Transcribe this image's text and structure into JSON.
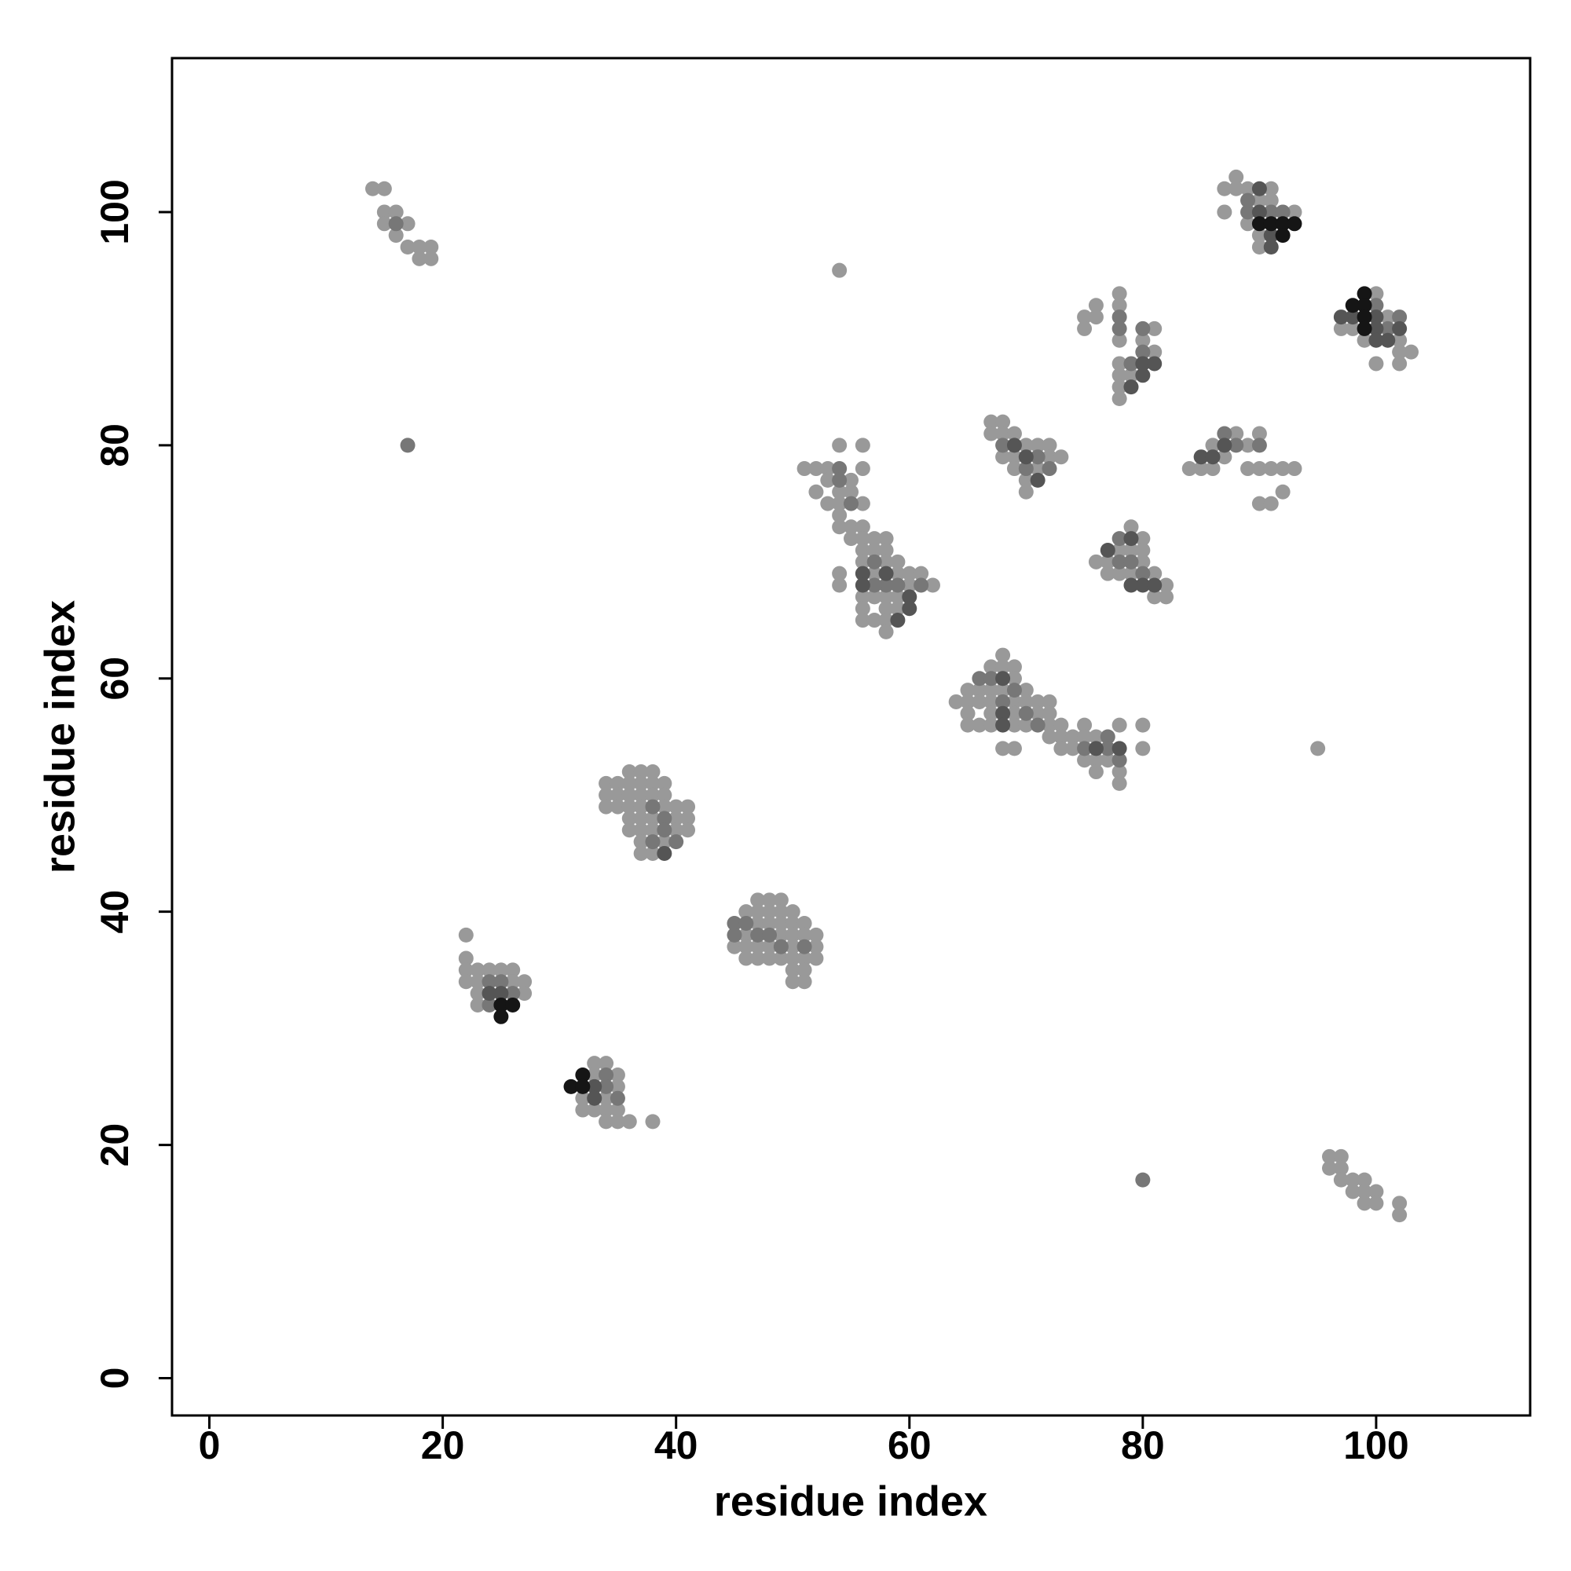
{
  "chart_data": {
    "type": "scatter",
    "xlabel": "residue index",
    "ylabel": "residue index",
    "xlim": [
      -3.2,
      113.2
    ],
    "ylim": [
      -3.2,
      113.2
    ],
    "xticks": [
      0,
      20,
      40,
      60,
      80,
      100
    ],
    "yticks": [
      0,
      20,
      40,
      60,
      80,
      100
    ],
    "series": [
      {
        "color": "#999999",
        "x": [
          14,
          15,
          15,
          16,
          15,
          17,
          16,
          17,
          18,
          19,
          18,
          19,
          54,
          22,
          22,
          22,
          22,
          23,
          23,
          23,
          23,
          24,
          25,
          26,
          26,
          27,
          27,
          32,
          32,
          33,
          33,
          33,
          34,
          34,
          34,
          34,
          35,
          35,
          35,
          35,
          36,
          38,
          34,
          34,
          34,
          35,
          35,
          35,
          36,
          36,
          36,
          36,
          36,
          36,
          37,
          37,
          37,
          37,
          37,
          37,
          37,
          37,
          38,
          38,
          38,
          38,
          38,
          38,
          39,
          39,
          39,
          39,
          40,
          40,
          40,
          41,
          41,
          41,
          45,
          46,
          46,
          46,
          46,
          47,
          47,
          47,
          47,
          47,
          48,
          48,
          48,
          48,
          48,
          49,
          49,
          49,
          49,
          49,
          50,
          50,
          50,
          50,
          50,
          50,
          50,
          51,
          51,
          51,
          51,
          51,
          52,
          52,
          52,
          51,
          52,
          52,
          53,
          53,
          53,
          54,
          54,
          54,
          54,
          54,
          55,
          55,
          55,
          55,
          56,
          56,
          56,
          56,
          56,
          56,
          56,
          56,
          56,
          56,
          54,
          54,
          57,
          57,
          57,
          57,
          57,
          58,
          58,
          58,
          58,
          58,
          58,
          58,
          59,
          59,
          59,
          59,
          60,
          60,
          61,
          62,
          64,
          65,
          65,
          65,
          65,
          66,
          66,
          66,
          67,
          67,
          67,
          67,
          67,
          68,
          68,
          68,
          68,
          69,
          69,
          69,
          69,
          69,
          69,
          70,
          70,
          70,
          71,
          71,
          72,
          72,
          72,
          72,
          73,
          73,
          73,
          74,
          74,
          75,
          75,
          75,
          76,
          76,
          76,
          77,
          78,
          78,
          78,
          80,
          80,
          95,
          67,
          67,
          68,
          68,
          68,
          69,
          69,
          69,
          70,
          70,
          70,
          71,
          71,
          72,
          72,
          73,
          76,
          77,
          77,
          78,
          78,
          79,
          79,
          79,
          80,
          80,
          80,
          81,
          81,
          82,
          82,
          75,
          75,
          76,
          76,
          78,
          78,
          78,
          78,
          78,
          78,
          78,
          79,
          80,
          81,
          81,
          84,
          85,
          86,
          86,
          87,
          88,
          89,
          89,
          90,
          90,
          90,
          91,
          91,
          92,
          92,
          93,
          87,
          87,
          88,
          88,
          89,
          89,
          90,
          90,
          90,
          91,
          91,
          93,
          97,
          98,
          99,
          100,
          100,
          101,
          102,
          102,
          102,
          103,
          96,
          96,
          97,
          97,
          97,
          98,
          98,
          99,
          99,
          99,
          100,
          100,
          102,
          102
        ],
        "y": [
          102,
          102,
          100,
          100,
          99,
          99,
          98,
          97,
          97,
          97,
          96,
          96,
          95,
          38,
          36,
          35,
          34,
          35,
          34,
          33,
          32,
          35,
          35,
          35,
          34,
          34,
          33,
          24,
          23,
          27,
          26,
          23,
          27,
          24,
          23,
          22,
          26,
          25,
          23,
          22,
          22,
          22,
          51,
          50,
          49,
          51,
          50,
          49,
          52,
          51,
          50,
          49,
          48,
          47,
          52,
          51,
          50,
          49,
          48,
          47,
          46,
          45,
          52,
          51,
          50,
          48,
          47,
          45,
          51,
          50,
          49,
          46,
          49,
          48,
          47,
          49,
          48,
          47,
          37,
          40,
          38,
          37,
          36,
          41,
          40,
          39,
          37,
          36,
          41,
          40,
          39,
          37,
          36,
          41,
          40,
          39,
          38,
          36,
          40,
          39,
          38,
          37,
          36,
          35,
          34,
          39,
          38,
          36,
          35,
          34,
          38,
          37,
          36,
          78,
          78,
          76,
          78,
          77,
          75,
          80,
          76,
          75,
          74,
          73,
          77,
          76,
          73,
          72,
          80,
          78,
          75,
          73,
          72,
          71,
          70,
          67,
          66,
          65,
          69,
          68,
          72,
          71,
          69,
          67,
          65,
          72,
          71,
          70,
          67,
          66,
          65,
          64,
          70,
          69,
          67,
          66,
          69,
          68,
          69,
          68,
          58,
          59,
          58,
          57,
          56,
          59,
          58,
          56,
          61,
          59,
          58,
          57,
          56,
          62,
          61,
          59,
          54,
          61,
          60,
          58,
          57,
          56,
          54,
          59,
          58,
          56,
          58,
          57,
          58,
          57,
          56,
          55,
          56,
          55,
          54,
          55,
          54,
          56,
          55,
          53,
          55,
          53,
          52,
          53,
          56,
          52,
          51,
          56,
          54,
          54,
          82,
          81,
          82,
          81,
          79,
          81,
          79,
          78,
          80,
          77,
          76,
          80,
          78,
          80,
          79,
          79,
          70,
          70,
          69,
          71,
          69,
          73,
          71,
          69,
          72,
          71,
          70,
          69,
          67,
          68,
          67,
          91,
          90,
          92,
          91,
          93,
          92,
          89,
          87,
          86,
          85,
          84,
          86,
          89,
          90,
          88,
          78,
          78,
          80,
          78,
          79,
          81,
          80,
          78,
          81,
          78,
          75,
          78,
          75,
          78,
          76,
          78,
          102,
          100,
          103,
          102,
          102,
          99,
          101,
          98,
          97,
          102,
          101,
          100,
          90,
          90,
          89,
          93,
          87,
          91,
          89,
          88,
          87,
          88,
          19,
          18,
          19,
          18,
          17,
          17,
          16,
          17,
          16,
          15,
          16,
          15,
          15,
          14
        ]
      },
      {
        "color": "#777777",
        "x": [
          16,
          17,
          80,
          24,
          25,
          26,
          24,
          34,
          34,
          35,
          38,
          39,
          39,
          40,
          38,
          45,
          45,
          46,
          47,
          48,
          49,
          51,
          54,
          54,
          55,
          57,
          58,
          59,
          61,
          57,
          66,
          67,
          69,
          68,
          70,
          71,
          77,
          75,
          77,
          78,
          68,
          70,
          71,
          72,
          78,
          78,
          79,
          80,
          78,
          78,
          79,
          80,
          80,
          87,
          88,
          90,
          89,
          89,
          91,
          92,
          101,
          102,
          100
        ],
        "y": [
          99,
          80,
          17,
          34,
          34,
          33,
          32,
          26,
          25,
          24,
          49,
          48,
          47,
          46,
          46,
          39,
          38,
          39,
          38,
          38,
          37,
          37,
          78,
          77,
          75,
          70,
          68,
          68,
          68,
          68,
          60,
          60,
          59,
          58,
          57,
          56,
          55,
          54,
          54,
          53,
          80,
          78,
          79,
          78,
          72,
          70,
          70,
          69,
          91,
          90,
          87,
          90,
          88,
          81,
          80,
          80,
          100,
          101,
          100,
          100,
          90,
          91,
          92
        ]
      },
      {
        "color": "#555555",
        "x": [
          39,
          24,
          25,
          33,
          33,
          56,
          56,
          58,
          60,
          60,
          59,
          68,
          68,
          68,
          76,
          78,
          69,
          70,
          71,
          77,
          80,
          81,
          79,
          79,
          79,
          80,
          81,
          80,
          85,
          87,
          86,
          90,
          90,
          91,
          91,
          100,
          100,
          100,
          101,
          102,
          98,
          97
        ],
        "y": [
          45,
          33,
          33,
          25,
          24,
          69,
          68,
          69,
          67,
          66,
          65,
          60,
          57,
          56,
          54,
          54,
          80,
          79,
          77,
          71,
          68,
          68,
          72,
          68,
          85,
          87,
          87,
          86,
          79,
          80,
          79,
          102,
          100,
          98,
          97,
          91,
          90,
          89,
          89,
          90,
          91,
          91
        ]
      },
      {
        "color": "#151515",
        "x": [
          25,
          26,
          25,
          31,
          32,
          32,
          90,
          91,
          92,
          93,
          92,
          98,
          99,
          99,
          99,
          99
        ],
        "y": [
          32,
          32,
          31,
          25,
          26,
          25,
          99,
          99,
          99,
          99,
          98,
          92,
          93,
          92,
          91,
          90
        ]
      }
    ]
  }
}
